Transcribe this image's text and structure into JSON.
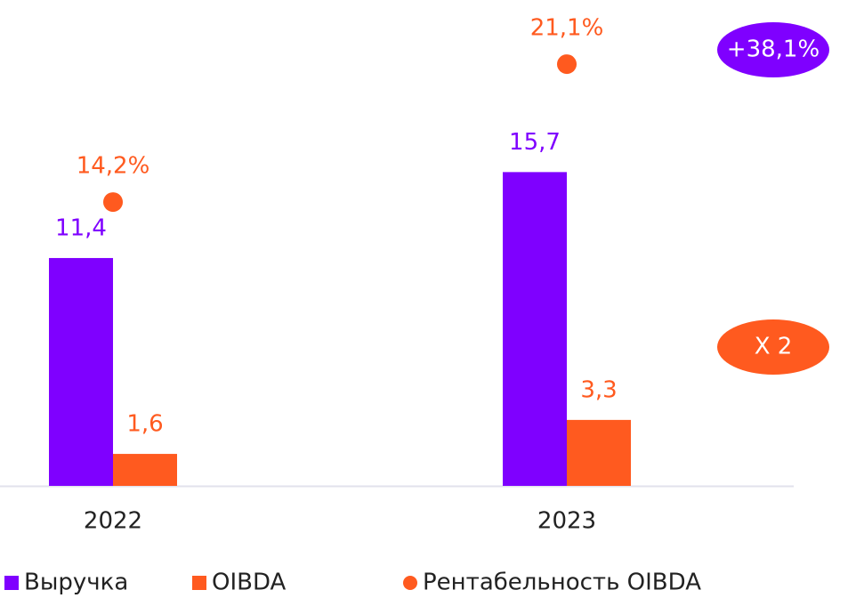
{
  "chart_data": {
    "type": "bar",
    "categories": [
      "2022",
      "2023"
    ],
    "series": [
      {
        "name": "Выручка",
        "color": "#7f00ff",
        "values": [
          11.4,
          15.7
        ],
        "value_labels": [
          "11,4",
          "15,7"
        ]
      },
      {
        "name": "OIBDA",
        "color": "#ff5a1f",
        "values": [
          1.6,
          3.3
        ],
        "value_labels": [
          "1,6",
          "3,3"
        ]
      },
      {
        "name": "Рентабельность OIBDA",
        "type": "scatter",
        "color": "#ff5a1f",
        "values": [
          14.2,
          21.1
        ],
        "value_labels": [
          "14,2%",
          "21,1%"
        ]
      }
    ],
    "annotations": [
      {
        "text": "+38,1%",
        "color": "#7f00ff"
      },
      {
        "text": "X 2",
        "color": "#ff5a1f"
      }
    ]
  }
}
